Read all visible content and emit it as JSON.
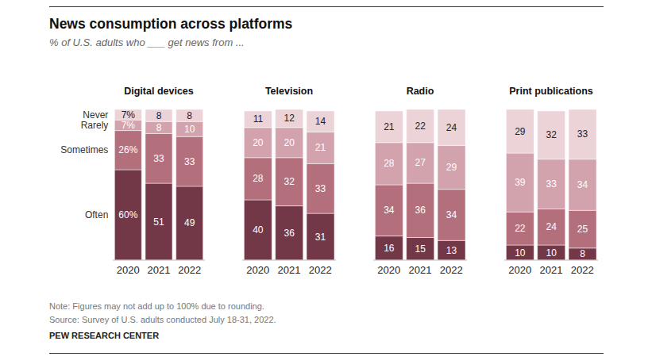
{
  "title": "News consumption across platforms",
  "subtitle": "% of U.S. adults who ___ get news from ...",
  "note": "Note: Figures may not add up to 100% due to rounding.",
  "source": "Source: Survey of U.S. adults conducted July 18-31, 2022.",
  "credit": "PEW RESEARCH CENTER",
  "chart_data": [
    {
      "type": "bar",
      "title": "Digital devices",
      "stacked": true,
      "data_labels": true,
      "grid": false,
      "tick_labels": "x",
      "categories": [
        "2020",
        "2021",
        "2022"
      ],
      "ylim": [
        0,
        100
      ],
      "series": [
        {
          "name": "Often",
          "color": "#733848",
          "values": [
            60,
            51,
            49
          ],
          "value_labels": [
            "60%",
            "51",
            "49"
          ]
        },
        {
          "name": "Sometimes",
          "color": "#b46f7d",
          "values": [
            26,
            33,
            33
          ],
          "value_labels": [
            "26%",
            "33",
            "33"
          ]
        },
        {
          "name": "Rarely",
          "color": "#d2a2ad",
          "values": [
            7,
            8,
            10
          ],
          "value_labels": [
            "7%",
            "8",
            "10"
          ]
        },
        {
          "name": "Never",
          "color": "#ecd3d8",
          "values": [
            7,
            8,
            8
          ],
          "value_labels": [
            "7%",
            "8",
            "8"
          ]
        }
      ]
    },
    {
      "type": "bar",
      "title": "Television",
      "stacked": true,
      "data_labels": true,
      "grid": false,
      "tick_labels": "x",
      "categories": [
        "2020",
        "2021",
        "2022"
      ],
      "ylim": [
        0,
        100
      ],
      "series": [
        {
          "name": "Often",
          "color": "#733848",
          "values": [
            40,
            36,
            31
          ]
        },
        {
          "name": "Sometimes",
          "color": "#b46f7d",
          "values": [
            28,
            32,
            33
          ]
        },
        {
          "name": "Rarely",
          "color": "#d2a2ad",
          "values": [
            20,
            20,
            21
          ]
        },
        {
          "name": "Never",
          "color": "#ecd3d8",
          "values": [
            11,
            12,
            14
          ]
        }
      ]
    },
    {
      "type": "bar",
      "title": "Radio",
      "stacked": true,
      "data_labels": true,
      "grid": false,
      "tick_labels": "x",
      "categories": [
        "2020",
        "2021",
        "2022"
      ],
      "ylim": [
        0,
        100
      ],
      "series": [
        {
          "name": "Often",
          "color": "#733848",
          "values": [
            16,
            15,
            13
          ]
        },
        {
          "name": "Sometimes",
          "color": "#b46f7d",
          "values": [
            34,
            36,
            34
          ]
        },
        {
          "name": "Rarely",
          "color": "#d2a2ad",
          "values": [
            28,
            27,
            29
          ]
        },
        {
          "name": "Never",
          "color": "#ecd3d8",
          "values": [
            21,
            22,
            24
          ]
        }
      ]
    },
    {
      "type": "bar",
      "title": "Print publications",
      "stacked": true,
      "data_labels": true,
      "grid": false,
      "tick_labels": "x",
      "categories": [
        "2020",
        "2021",
        "2022"
      ],
      "ylim": [
        0,
        100
      ],
      "series": [
        {
          "name": "Often",
          "color": "#733848",
          "values": [
            10,
            10,
            8
          ]
        },
        {
          "name": "Sometimes",
          "color": "#b46f7d",
          "values": [
            22,
            24,
            25
          ]
        },
        {
          "name": "Rarely",
          "color": "#d2a2ad",
          "values": [
            39,
            33,
            34
          ]
        },
        {
          "name": "Never",
          "color": "#ecd3d8",
          "values": [
            29,
            32,
            33
          ]
        }
      ]
    }
  ]
}
